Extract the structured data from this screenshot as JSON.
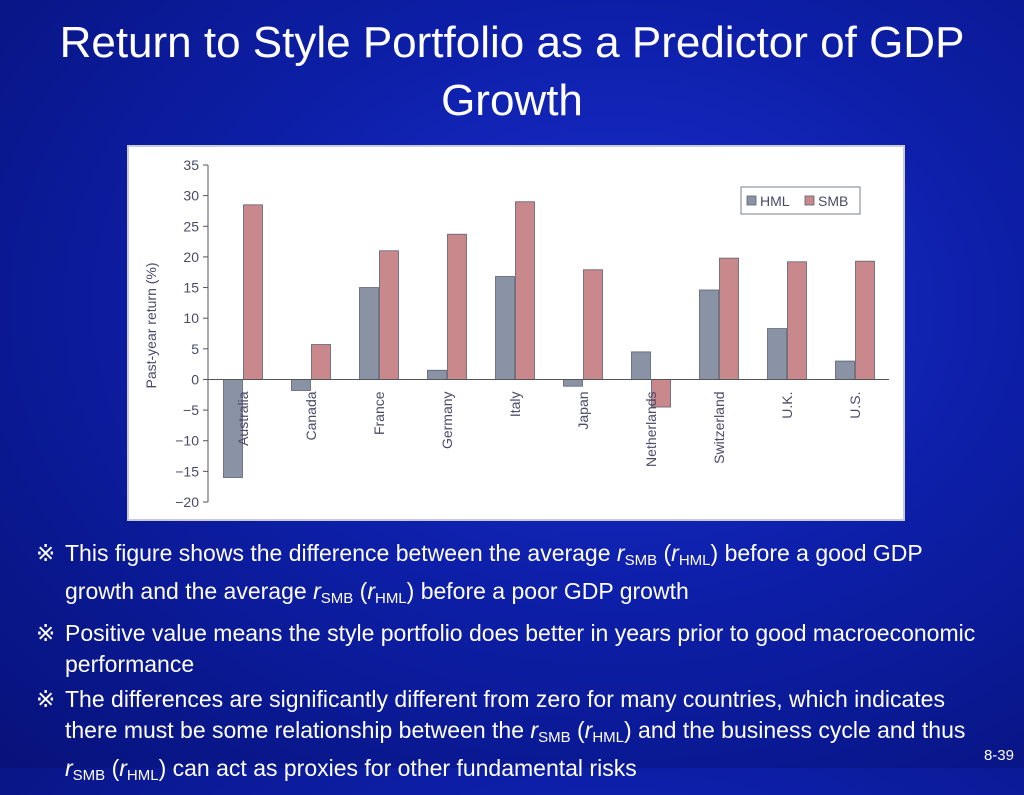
{
  "slide": {
    "title": "Return to Style Portfolio as a Predictor of GDP Growth",
    "page_number": "8-39"
  },
  "bullets": {
    "marker": "※",
    "b1": {
      "t1": "This figure shows the difference between the average ",
      "r": "r",
      "smb": "SMB",
      "p_open": " (",
      "hml": "HML",
      "t2": ") before a good GDP growth and the average ",
      "t3": ") before a poor GDP growth"
    },
    "b2": {
      "t1": "Positive value means the style portfolio does better in years prior to good macroeconomic performance"
    },
    "b3": {
      "t1": "The differences are significantly different from zero for many countries, which indicates there must be some relationship between the ",
      "t2": ") and the business cycle and thus ",
      "t3": ") can act as proxies for other fundamental risks"
    }
  },
  "chart_data": {
    "type": "bar",
    "title": "",
    "xlabel": "",
    "ylabel": "Past-year return (%)",
    "ylim": [
      -20,
      35
    ],
    "yticks": [
      "35",
      "30",
      "25",
      "20",
      "15",
      "10",
      "5",
      "0",
      "−5",
      "−10",
      "−15",
      "−20"
    ],
    "ytick_values": [
      35,
      30,
      25,
      20,
      15,
      10,
      5,
      0,
      -5,
      -10,
      -15,
      -20
    ],
    "categories": [
      "Australia",
      "Canada",
      "France",
      "Germany",
      "Italy",
      "Japan",
      "Netherlands",
      "Switzerland",
      "U.K.",
      "U.S."
    ],
    "series": [
      {
        "name": "HML",
        "color": "#8a93a6",
        "values": [
          -16,
          -1.8,
          15,
          1.5,
          16.8,
          -1.1,
          4.5,
          14.6,
          8.3,
          3
        ]
      },
      {
        "name": "SMB",
        "color": "#c9898c",
        "values": [
          28.5,
          5.7,
          21,
          23.7,
          29,
          17.9,
          -4.5,
          19.8,
          19.2,
          19.3
        ]
      }
    ],
    "legend_position": "top-right",
    "grid": false
  }
}
